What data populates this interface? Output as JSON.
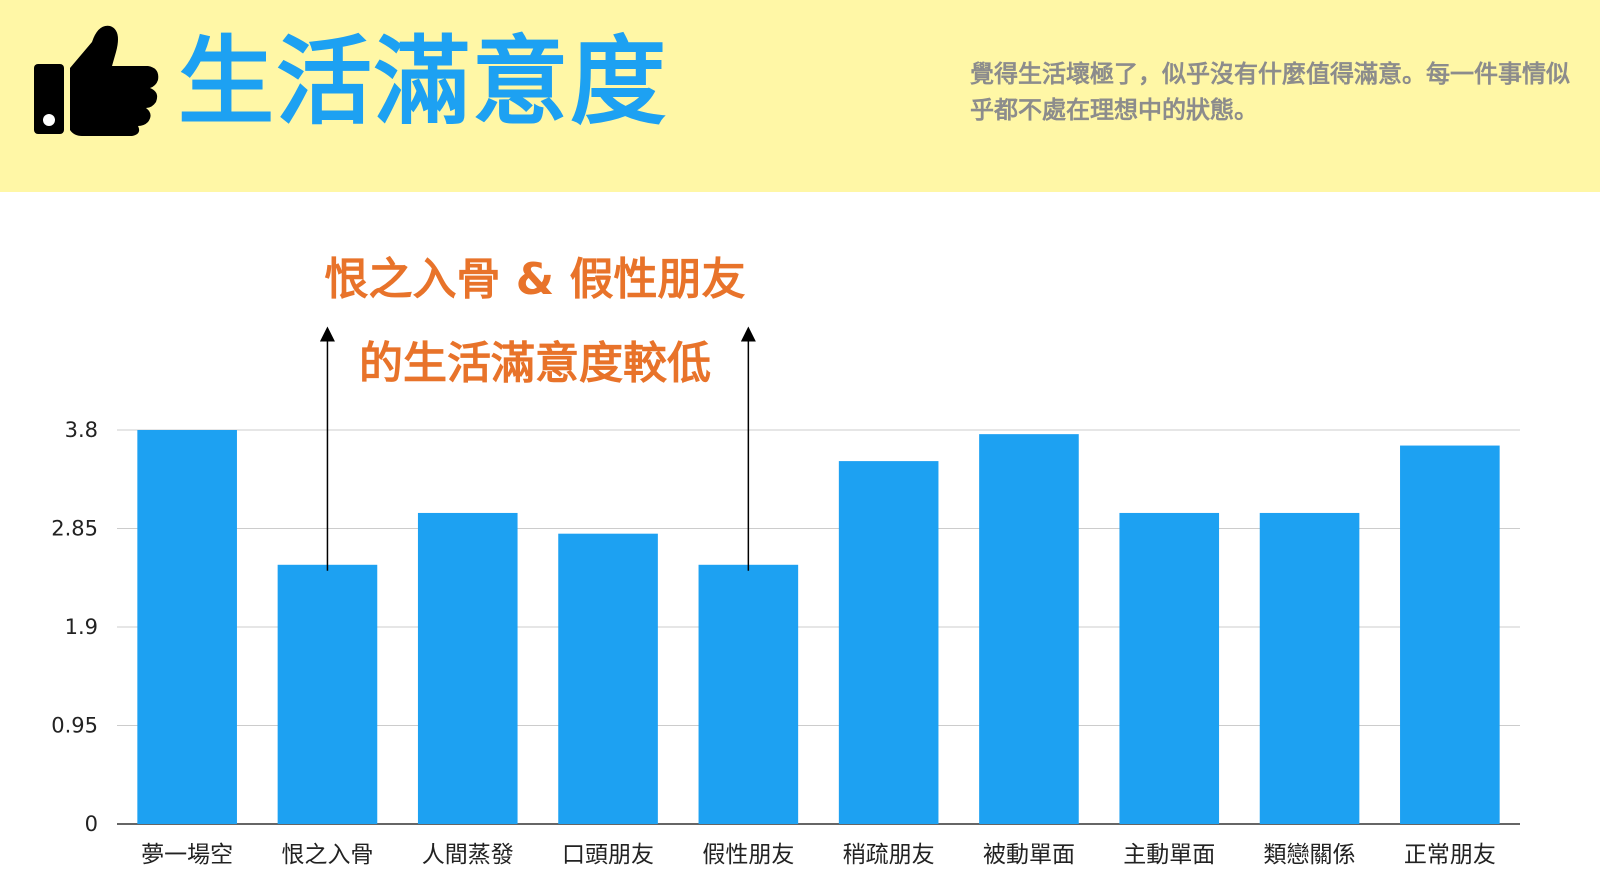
{
  "header": {
    "title": "生活滿意度",
    "subtitle": "覺得生活壞極了，似乎沒有什麼值得滿意。每一件事情似乎都不處在理想中的狀態。",
    "icon": "thumbs-up-icon",
    "background_color": "#fff7a6",
    "title_color": "#1da1f2"
  },
  "annotation": {
    "line1": "恨之入骨 & 假性朋友",
    "line2": "的生活滿意度較低",
    "color": "#e8732a",
    "points_to": [
      "恨之入骨",
      "假性朋友"
    ]
  },
  "chart_data": {
    "type": "bar",
    "categories": [
      "夢一場空",
      "恨之入骨",
      "人間蒸發",
      "口頭朋友",
      "假性朋友",
      "稍疏朋友",
      "被動單面",
      "主動單面",
      "類戀關係",
      "正常朋友"
    ],
    "values": [
      3.8,
      2.5,
      3.0,
      2.8,
      2.5,
      3.5,
      3.76,
      3.0,
      3.0,
      3.65
    ],
    "ylim": [
      0,
      3.8
    ],
    "yticks": [
      "0",
      "0.95",
      "1.9",
      "2.85",
      "3.8"
    ],
    "ytick_values": [
      0,
      0.95,
      1.9,
      2.85,
      3.8
    ],
    "grid": true,
    "bar_color": "#1da1f2",
    "xlabel": "",
    "ylabel": ""
  }
}
